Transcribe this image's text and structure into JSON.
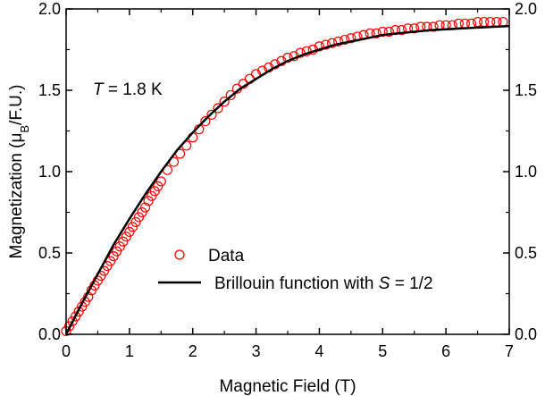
{
  "chart_data": {
    "type": "scatter",
    "xlabel": "Magnetic Field (T)",
    "ylabel_main": "Magnetization (μ",
    "ylabel_sub": "B",
    "ylabel_tail": "/F.U.)",
    "xlim": [
      0,
      7
    ],
    "ylim": [
      0,
      2.0
    ],
    "xticks": [
      "0",
      "1",
      "2",
      "3",
      "4",
      "5",
      "6",
      "7"
    ],
    "yticks": [
      "0.0",
      "0.5",
      "1.0",
      "1.5",
      "2.0"
    ],
    "right_yticks": [
      "0.0",
      "0.5",
      "1.0",
      "1.5",
      "2.0"
    ],
    "annotation": {
      "italic": "T",
      "rest": " = 1.8 K"
    },
    "legend": {
      "data_label": "Data",
      "fit_label_prefix": "Brillouin function with ",
      "fit_label_italic": "S",
      "fit_label_suffix": " = 1/2"
    },
    "colors": {
      "data": "#ff0000",
      "fit": "#000000"
    },
    "series": [
      {
        "kind": "markers",
        "x": [
          0.0,
          0.05,
          0.1,
          0.15,
          0.2,
          0.25,
          0.3,
          0.35,
          0.4,
          0.45,
          0.5,
          0.55,
          0.6,
          0.65,
          0.7,
          0.75,
          0.8,
          0.85,
          0.9,
          0.95,
          1.0,
          1.05,
          1.1,
          1.15,
          1.2,
          1.25,
          1.3,
          1.35,
          1.4,
          1.45,
          1.5,
          1.6,
          1.7,
          1.8,
          1.9,
          2.0,
          2.1,
          2.2,
          2.3,
          2.4,
          2.5,
          2.6,
          2.7,
          2.8,
          2.9,
          3.0,
          3.1,
          3.2,
          3.3,
          3.4,
          3.5,
          3.6,
          3.7,
          3.8,
          3.9,
          4.0,
          4.1,
          4.2,
          4.3,
          4.4,
          4.5,
          4.6,
          4.7,
          4.8,
          4.9,
          5.0,
          5.1,
          5.2,
          5.3,
          5.4,
          5.5,
          5.6,
          5.7,
          5.8,
          5.9,
          6.0,
          6.1,
          6.2,
          6.3,
          6.4,
          6.5,
          6.6,
          6.7,
          6.8,
          6.9
        ],
        "y": [
          0.02,
          0.05,
          0.08,
          0.11,
          0.14,
          0.17,
          0.2,
          0.23,
          0.27,
          0.3,
          0.33,
          0.36,
          0.39,
          0.42,
          0.45,
          0.48,
          0.51,
          0.54,
          0.57,
          0.6,
          0.63,
          0.66,
          0.69,
          0.72,
          0.75,
          0.78,
          0.82,
          0.85,
          0.88,
          0.91,
          0.94,
          1.01,
          1.06,
          1.11,
          1.16,
          1.21,
          1.26,
          1.31,
          1.35,
          1.39,
          1.43,
          1.47,
          1.51,
          1.54,
          1.57,
          1.6,
          1.62,
          1.64,
          1.66,
          1.68,
          1.7,
          1.71,
          1.73,
          1.74,
          1.75,
          1.77,
          1.78,
          1.79,
          1.8,
          1.81,
          1.82,
          1.83,
          1.84,
          1.85,
          1.85,
          1.86,
          1.86,
          1.87,
          1.87,
          1.88,
          1.88,
          1.89,
          1.89,
          1.89,
          1.9,
          1.9,
          1.9,
          1.91,
          1.91,
          1.91,
          1.92,
          1.92,
          1.92,
          1.92,
          1.92
        ]
      },
      {
        "kind": "line",
        "x": [
          0.0,
          0.25,
          0.5,
          0.75,
          1.0,
          1.25,
          1.5,
          1.75,
          2.0,
          2.25,
          2.5,
          2.75,
          3.0,
          3.25,
          3.5,
          3.75,
          4.0,
          4.25,
          4.5,
          4.75,
          5.0,
          5.25,
          5.5,
          5.75,
          6.0,
          6.25,
          6.5,
          6.75,
          7.0
        ],
        "y": [
          0.0,
          0.19,
          0.37,
          0.55,
          0.71,
          0.86,
          1.0,
          1.13,
          1.24,
          1.34,
          1.43,
          1.51,
          1.57,
          1.63,
          1.68,
          1.72,
          1.75,
          1.78,
          1.8,
          1.82,
          1.84,
          1.85,
          1.86,
          1.87,
          1.875,
          1.88,
          1.885,
          1.89,
          1.895
        ]
      }
    ]
  }
}
